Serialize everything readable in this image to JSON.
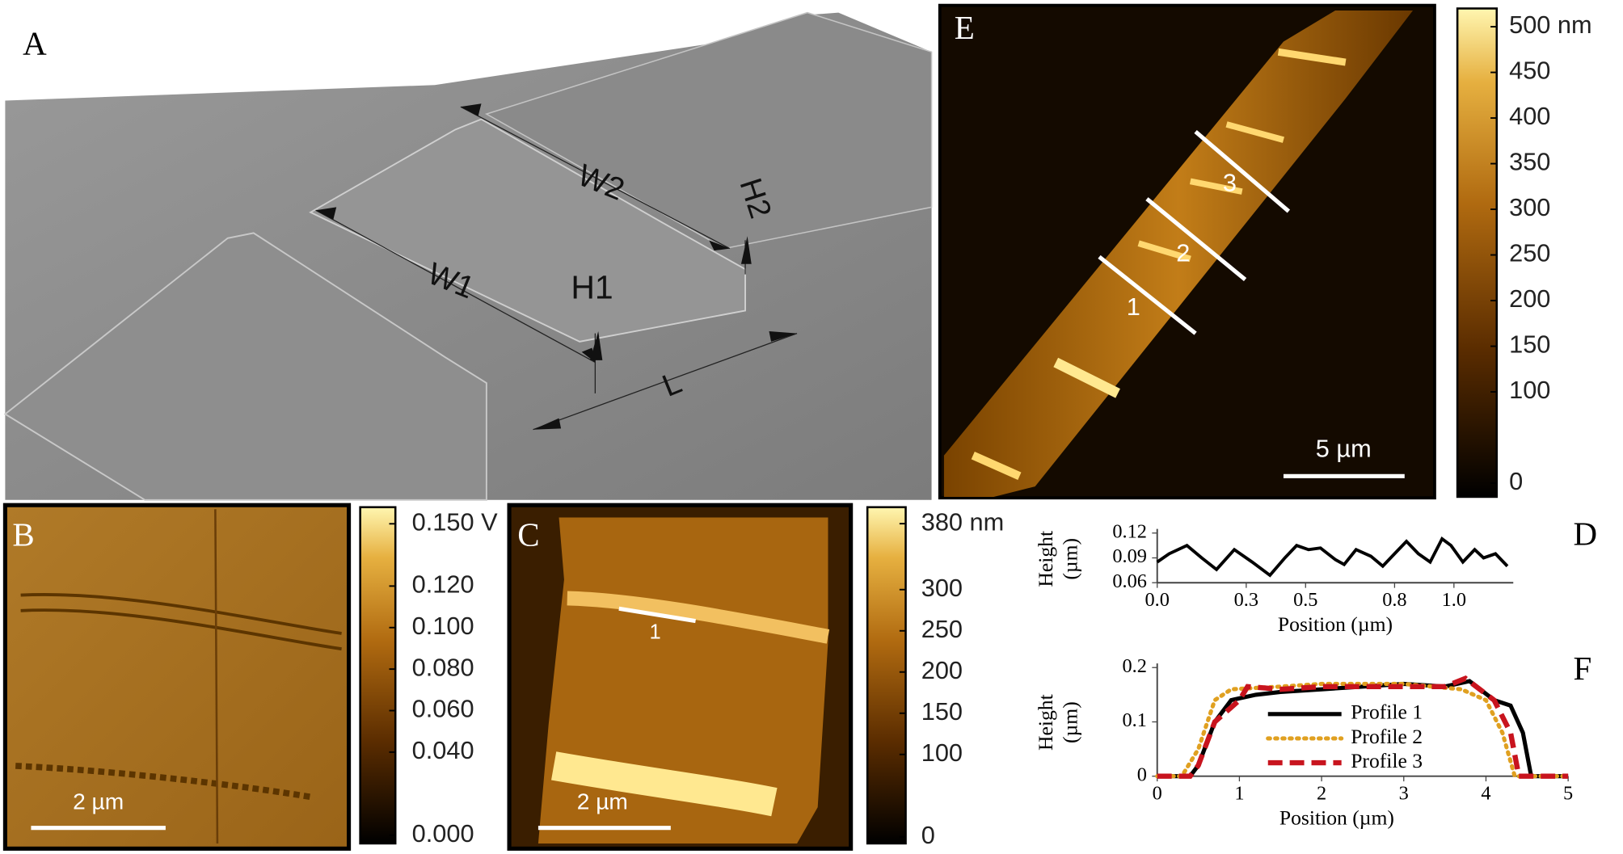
{
  "panels": {
    "A": {
      "label": "A",
      "annotations": [
        "W1",
        "W2",
        "H1",
        "H2",
        "L"
      ]
    },
    "B": {
      "label": "B",
      "scale_bar": "2 µm"
    },
    "C": {
      "label": "C",
      "scale_bar": "2 µm",
      "profile_labels": [
        "1"
      ]
    },
    "E": {
      "label": "E",
      "scale_bar": "5 µm",
      "profile_labels": [
        "1",
        "2",
        "3"
      ]
    }
  },
  "chart_data": [
    {
      "type": "colorbar",
      "ylim": [
        -0.004,
        0.158
      ],
      "yticks": [
        {
          "value": 0.15,
          "label": "0.150 V"
        },
        {
          "value": 0.12,
          "label": "0.120"
        },
        {
          "value": 0.1,
          "label": "0.100"
        },
        {
          "value": 0.08,
          "label": "0.080"
        },
        {
          "value": 0.06,
          "label": "0.060"
        },
        {
          "value": 0.04,
          "label": "0.040"
        },
        {
          "value": 0,
          "label": "0.000"
        }
      ]
    },
    {
      "type": "colorbar",
      "ylim": [
        -8,
        400
      ],
      "yticks": [
        {
          "value": 380,
          "label": "380 nm"
        },
        300,
        250,
        200,
        150,
        100,
        0
      ]
    },
    {
      "type": "colorbar",
      "ylim": [
        -15,
        520
      ],
      "yticks": [
        {
          "value": 500,
          "label": "500 nm"
        },
        450,
        400,
        350,
        300,
        250,
        200,
        150,
        100,
        0
      ]
    },
    {
      "type": "line",
      "label": "D",
      "ylabel": [
        "Height",
        "(µm)"
      ],
      "xlabel": "Position (µm)",
      "xlim": [
        0,
        1.2
      ],
      "ylim": [
        0.06,
        0.12
      ],
      "xticks": [
        {
          "value": 0,
          "label": "0.0"
        },
        0.3,
        0.5,
        0.8,
        {
          "value": 1,
          "label": "1.0"
        }
      ],
      "yticks": [
        0.06,
        0.09,
        0.12
      ],
      "color": "#000000",
      "x": [
        0,
        0.04,
        0.1,
        0.15,
        0.2,
        0.26,
        0.32,
        0.38,
        0.43,
        0.47,
        0.51,
        0.55,
        0.6,
        0.63,
        0.67,
        0.72,
        0.76,
        0.8,
        0.84,
        0.88,
        0.92,
        0.96,
        0.99,
        1.03,
        1.07,
        1.1,
        1.14,
        1.18
      ],
      "values": [
        0.085,
        0.095,
        0.105,
        0.09,
        0.076,
        0.1,
        0.085,
        0.069,
        0.09,
        0.105,
        0.1,
        0.102,
        0.088,
        0.082,
        0.1,
        0.092,
        0.08,
        0.095,
        0.11,
        0.095,
        0.085,
        0.113,
        0.105,
        0.085,
        0.1,
        0.09,
        0.095,
        0.08
      ]
    },
    {
      "type": "line",
      "label": "F",
      "ylabel": [
        "Height",
        "(µm)"
      ],
      "xlabel": "Position (µm)",
      "xlim": [
        0,
        5
      ],
      "ylim": [
        0,
        0.2
      ],
      "xticks": [
        0,
        1,
        2,
        3,
        4,
        5
      ],
      "yticks": [
        0,
        0.1,
        0.2
      ],
      "series": [
        {
          "name": "Profile 1",
          "color": "#000000",
          "style": "solid",
          "x": [
            0,
            0.4,
            0.5,
            0.7,
            0.9,
            1.2,
            1.5,
            2,
            2.5,
            3,
            3.5,
            3.8,
            4.1,
            4.3,
            4.45,
            4.55,
            5
          ],
          "values": [
            0,
            0,
            0.02,
            0.1,
            0.14,
            0.15,
            0.155,
            0.16,
            0.165,
            0.17,
            0.165,
            0.175,
            0.14,
            0.13,
            0.08,
            0,
            0
          ]
        },
        {
          "name": "Profile 2",
          "color": "#e0a020",
          "style": "dotted",
          "x": [
            0,
            0.3,
            0.5,
            0.7,
            0.9,
            1.5,
            2,
            3,
            3.7,
            4,
            4.2,
            4.35,
            5
          ],
          "values": [
            0,
            0,
            0.05,
            0.14,
            0.16,
            0.165,
            0.17,
            0.17,
            0.16,
            0.14,
            0.08,
            0,
            0
          ]
        },
        {
          "name": "Profile 3",
          "color": "#c8141e",
          "style": "dashed",
          "x": [
            0,
            0.4,
            0.5,
            0.7,
            1,
            1.1,
            1.5,
            2,
            3,
            3.5,
            3.75,
            4.1,
            4.3,
            4.4,
            5
          ],
          "values": [
            0,
            0,
            0.02,
            0.1,
            0.14,
            0.165,
            0.16,
            0.165,
            0.165,
            0.165,
            0.18,
            0.14,
            0.08,
            0,
            0
          ]
        }
      ]
    }
  ]
}
